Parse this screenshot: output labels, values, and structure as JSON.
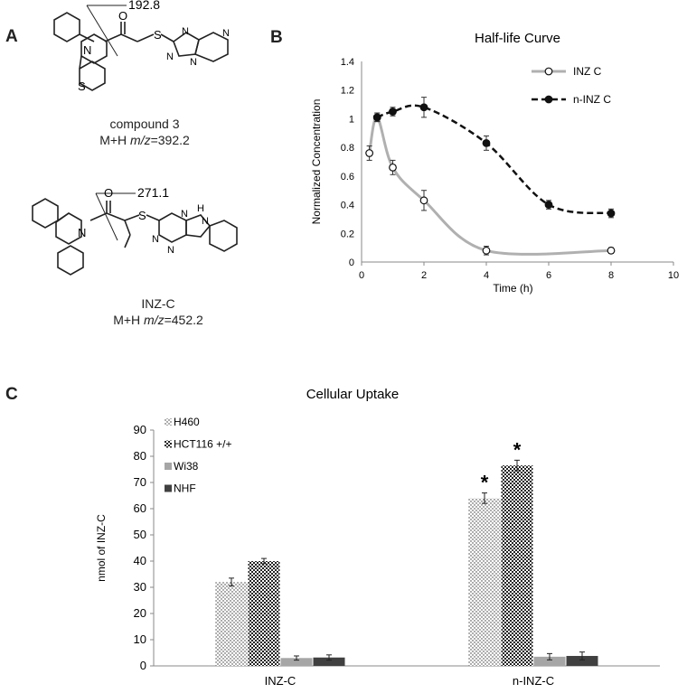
{
  "panels": {
    "a": "A",
    "b": "B",
    "c": "C"
  },
  "compound3": {
    "fragment_mass": "192.8",
    "name": "compound 3",
    "mz_prefix": "M+H ",
    "mz_italic": "m/z",
    "mz_value": "=392.2",
    "atoms": {
      "n_ring": "N",
      "o": "O",
      "s_thio": "S",
      "s_ring": "S",
      "n1": "N",
      "n2": "N",
      "n3": "N",
      "n4": "N"
    }
  },
  "inzc": {
    "fragment_mass": "271.1",
    "name": "INZ-C",
    "mz_prefix": "M+H ",
    "mz_italic": "m/z",
    "mz_value": "=452.2",
    "atoms": {
      "n_ring": "N",
      "o": "O",
      "s": "S",
      "n1": "N",
      "n2": "N",
      "n3": "N",
      "nh": "H",
      "nh_n": "N"
    }
  },
  "chart_data": [
    {
      "type": "line",
      "title": "Half-life Curve",
      "xlabel": "Time (h)",
      "ylabel": "Normalized Concentration",
      "xlim": [
        0,
        10
      ],
      "ylim": [
        0,
        1.4
      ],
      "xticks": [
        "0",
        "2",
        "4",
        "6",
        "8",
        "10"
      ],
      "yticks": [
        "0",
        "0.2",
        "0.4",
        "0.6",
        "0.8",
        "1",
        "1.2",
        "1.4"
      ],
      "grid": false,
      "legend_position": "top-right",
      "series": [
        {
          "name": "INZ C",
          "style": "solid-gray-open-circles",
          "color": "#b0b0b0",
          "x": [
            0.25,
            0.5,
            1,
            2,
            4,
            8
          ],
          "y": [
            0.76,
            1.01,
            0.66,
            0.43,
            0.08,
            0.08
          ],
          "err": [
            0.05,
            0.03,
            0.05,
            0.07,
            0.03,
            0.02
          ]
        },
        {
          "name": "n-INZ C",
          "style": "dashed-black-filled-circles",
          "color": "#111111",
          "x": [
            0.5,
            1,
            2,
            4,
            6,
            8
          ],
          "y": [
            1.01,
            1.05,
            1.08,
            0.83,
            0.4,
            0.34
          ],
          "err": [
            0.03,
            0.03,
            0.07,
            0.05,
            0.03,
            0.03
          ]
        }
      ]
    },
    {
      "type": "bar",
      "title": "Cellular Uptake",
      "xlabel": "",
      "ylabel": "nmol  of INZ-C",
      "ylim": [
        0,
        90
      ],
      "yticks": [
        "0",
        "10",
        "20",
        "30",
        "40",
        "50",
        "60",
        "70",
        "80",
        "90"
      ],
      "categories": [
        "INZ-C",
        "n-INZ-C"
      ],
      "legend_position": "top-left",
      "series": [
        {
          "name": "H460",
          "pattern": "dots",
          "values": [
            32,
            64
          ],
          "err": [
            1.5,
            2
          ]
        },
        {
          "name": "HCT116 +/+",
          "pattern": "checker",
          "values": [
            40,
            76.5
          ],
          "err": [
            1,
            2
          ]
        },
        {
          "name": "Wi38",
          "pattern": "lightgray",
          "values": [
            3,
            3.5
          ],
          "err": [
            0.8,
            1.2
          ]
        },
        {
          "name": "NHF",
          "pattern": "darkgray",
          "values": [
            3.2,
            3.8
          ],
          "err": [
            1,
            1.5
          ]
        }
      ],
      "annotations": [
        {
          "text": "*",
          "category": "n-INZ-C",
          "series": "H460"
        },
        {
          "text": "*",
          "category": "n-INZ-C",
          "series": "HCT116 +/+"
        }
      ]
    }
  ]
}
